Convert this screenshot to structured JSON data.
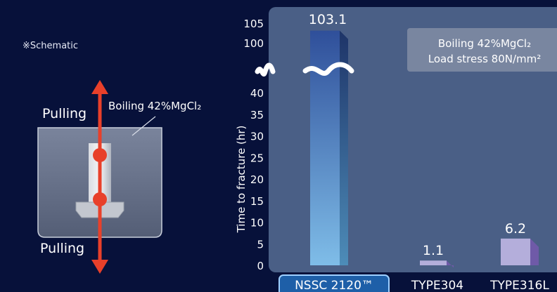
{
  "schematic": {
    "note": "※Schematic",
    "pull_top": "Pulling",
    "pull_bottom": "Pulling",
    "bath_label": "Boiling 42%MgCl₂"
  },
  "colors": {
    "background": "#07113a",
    "plot_area": "#4a5f86",
    "arrow": "#e8402a",
    "nssc_bar": "#4f86c6",
    "other_bars": "#b4aedb"
  },
  "chart_data": {
    "type": "bar",
    "categories": [
      "NSSC 2120™",
      "TYPE304",
      "TYPE316L"
    ],
    "values": [
      103.1,
      1.1,
      6.2
    ],
    "data_labels": [
      "103.1",
      "1.1",
      "6.2"
    ],
    "ylabel": "Time to fracture (hr)",
    "yticks_lower": [
      0,
      5,
      10,
      15,
      20,
      25,
      30,
      35,
      40
    ],
    "yticks_upper": [
      100,
      105
    ],
    "ylim": [
      0,
      105
    ],
    "axis_break": "~",
    "annotation": [
      "Boiling 42%MgCl₂",
      "Load stress 80N/mm²"
    ],
    "highlight_category": "NSSC 2120™"
  }
}
